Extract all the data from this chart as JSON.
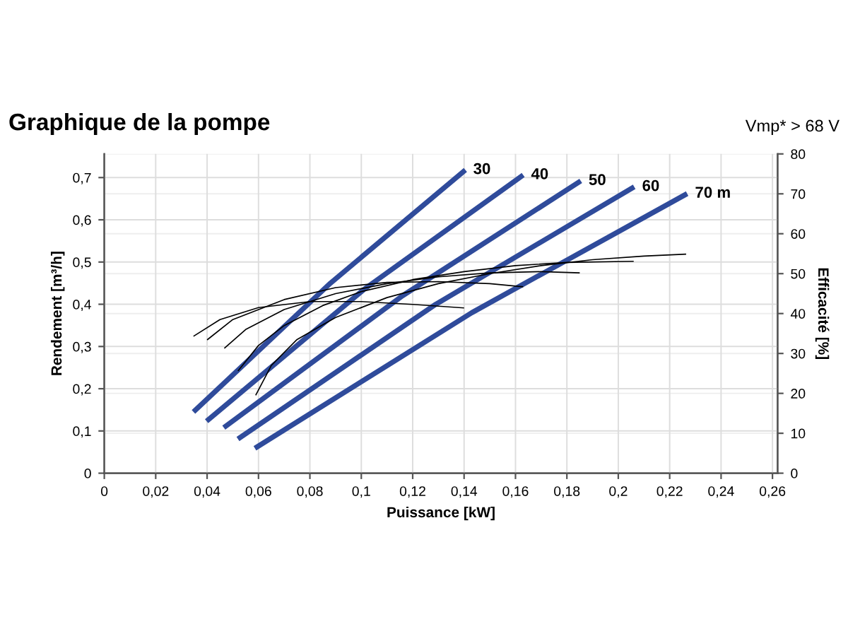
{
  "chart_data": {
    "type": "line",
    "title": "Graphique de la pompe",
    "subtitle": "Vmp* > 68 V",
    "xlabel": "Puissance [kW]",
    "ylabel": "Rendement [m³/h]",
    "y2label": "Efficacité [%]",
    "xlim": [
      0,
      0.262
    ],
    "ylim": [
      0,
      0.756
    ],
    "y2lim": [
      0,
      80
    ],
    "xticks": [
      0,
      {
        "value": 0.02,
        "label": "0,02"
      },
      {
        "value": 0.04,
        "label": "0,04"
      },
      {
        "value": 0.06,
        "label": "0,06"
      },
      {
        "value": 0.08,
        "label": "0,08"
      },
      {
        "value": 0.1,
        "label": "0,1"
      },
      {
        "value": 0.12,
        "label": "0,12"
      },
      {
        "value": 0.14,
        "label": "0,14"
      },
      {
        "value": 0.16,
        "label": "0,16"
      },
      {
        "value": 0.18,
        "label": "0,18"
      },
      {
        "value": 0.2,
        "label": "0,2"
      },
      {
        "value": 0.22,
        "label": "0,22"
      },
      {
        "value": 0.24,
        "label": "0,24"
      },
      {
        "value": 0.26,
        "label": "0,26"
      }
    ],
    "yticks": [
      0,
      {
        "value": 0.1,
        "label": "0,1"
      },
      {
        "value": 0.2,
        "label": "0,2"
      },
      {
        "value": 0.3,
        "label": "0,3"
      },
      {
        "value": 0.4,
        "label": "0,4"
      },
      {
        "value": 0.5,
        "label": "0,5"
      },
      {
        "value": 0.6,
        "label": "0,6"
      },
      {
        "value": 0.7,
        "label": "0,7"
      }
    ],
    "y2ticks": [
      0,
      10,
      20,
      30,
      40,
      50,
      60,
      70,
      80
    ],
    "grid": true,
    "legend": false,
    "marker": "none",
    "line_style": "solid",
    "series": [
      {
        "name": "30",
        "color": "#2f4b9b",
        "x": [
          0.0347,
          0.088,
          0.1405
        ],
        "values": [
          0.145,
          0.45,
          0.718
        ]
      },
      {
        "name": "40",
        "color": "#2f4b9b",
        "x": [
          0.0398,
          0.101,
          0.163
        ],
        "values": [
          0.123,
          0.435,
          0.706
        ]
      },
      {
        "name": "50",
        "color": "#2f4b9b",
        "x": [
          0.0465,
          0.116,
          0.1854
        ],
        "values": [
          0.108,
          0.42,
          0.692
        ]
      },
      {
        "name": "60",
        "color": "#2f4b9b",
        "x": [
          0.052,
          0.129,
          0.2062
        ],
        "values": [
          0.081,
          0.4,
          0.678
        ]
      },
      {
        "name": "70 m",
        "color": "#2f4b9b",
        "x": [
          0.0586,
          0.143,
          0.2268
        ],
        "values": [
          0.059,
          0.38,
          0.662
        ]
      },
      {
        "color": "#000000",
        "axis": "y2",
        "x": [
          0.0347,
          0.045,
          0.06,
          0.08,
          0.1,
          0.12,
          0.14
        ],
        "values": [
          34.3,
          38.5,
          41.5,
          43,
          43,
          42.3,
          41.4
        ]
      },
      {
        "color": "#000000",
        "axis": "y2",
        "x": [
          0.04,
          0.05,
          0.07,
          0.09,
          0.11,
          0.13,
          0.15,
          0.163
        ],
        "values": [
          33.4,
          38.5,
          43.5,
          46.5,
          47.8,
          48,
          47.5,
          46.7
        ]
      },
      {
        "color": "#000000",
        "axis": "y2",
        "x": [
          0.0467,
          0.055,
          0.07,
          0.09,
          0.11,
          0.13,
          0.15,
          0.17,
          0.185
        ],
        "values": [
          31.3,
          36,
          41,
          45,
          47.5,
          49.2,
          50.2,
          50.5,
          50.2
        ]
      },
      {
        "color": "#000000",
        "axis": "y2",
        "x": [
          0.052,
          0.06,
          0.07,
          0.085,
          0.1,
          0.12,
          0.14,
          0.16,
          0.18,
          0.206
        ],
        "values": [
          25.6,
          32,
          37,
          42,
          45.5,
          48.5,
          50.5,
          52,
          52.8,
          53.1
        ]
      },
      {
        "color": "#000000",
        "axis": "y2",
        "x": [
          0.0589,
          0.065,
          0.075,
          0.09,
          0.11,
          0.13,
          0.15,
          0.17,
          0.19,
          0.21,
          0.2264
        ],
        "values": [
          19.5,
          27,
          33.5,
          39,
          44,
          47.5,
          50,
          52,
          53.5,
          54.4,
          54.9
        ]
      }
    ]
  }
}
